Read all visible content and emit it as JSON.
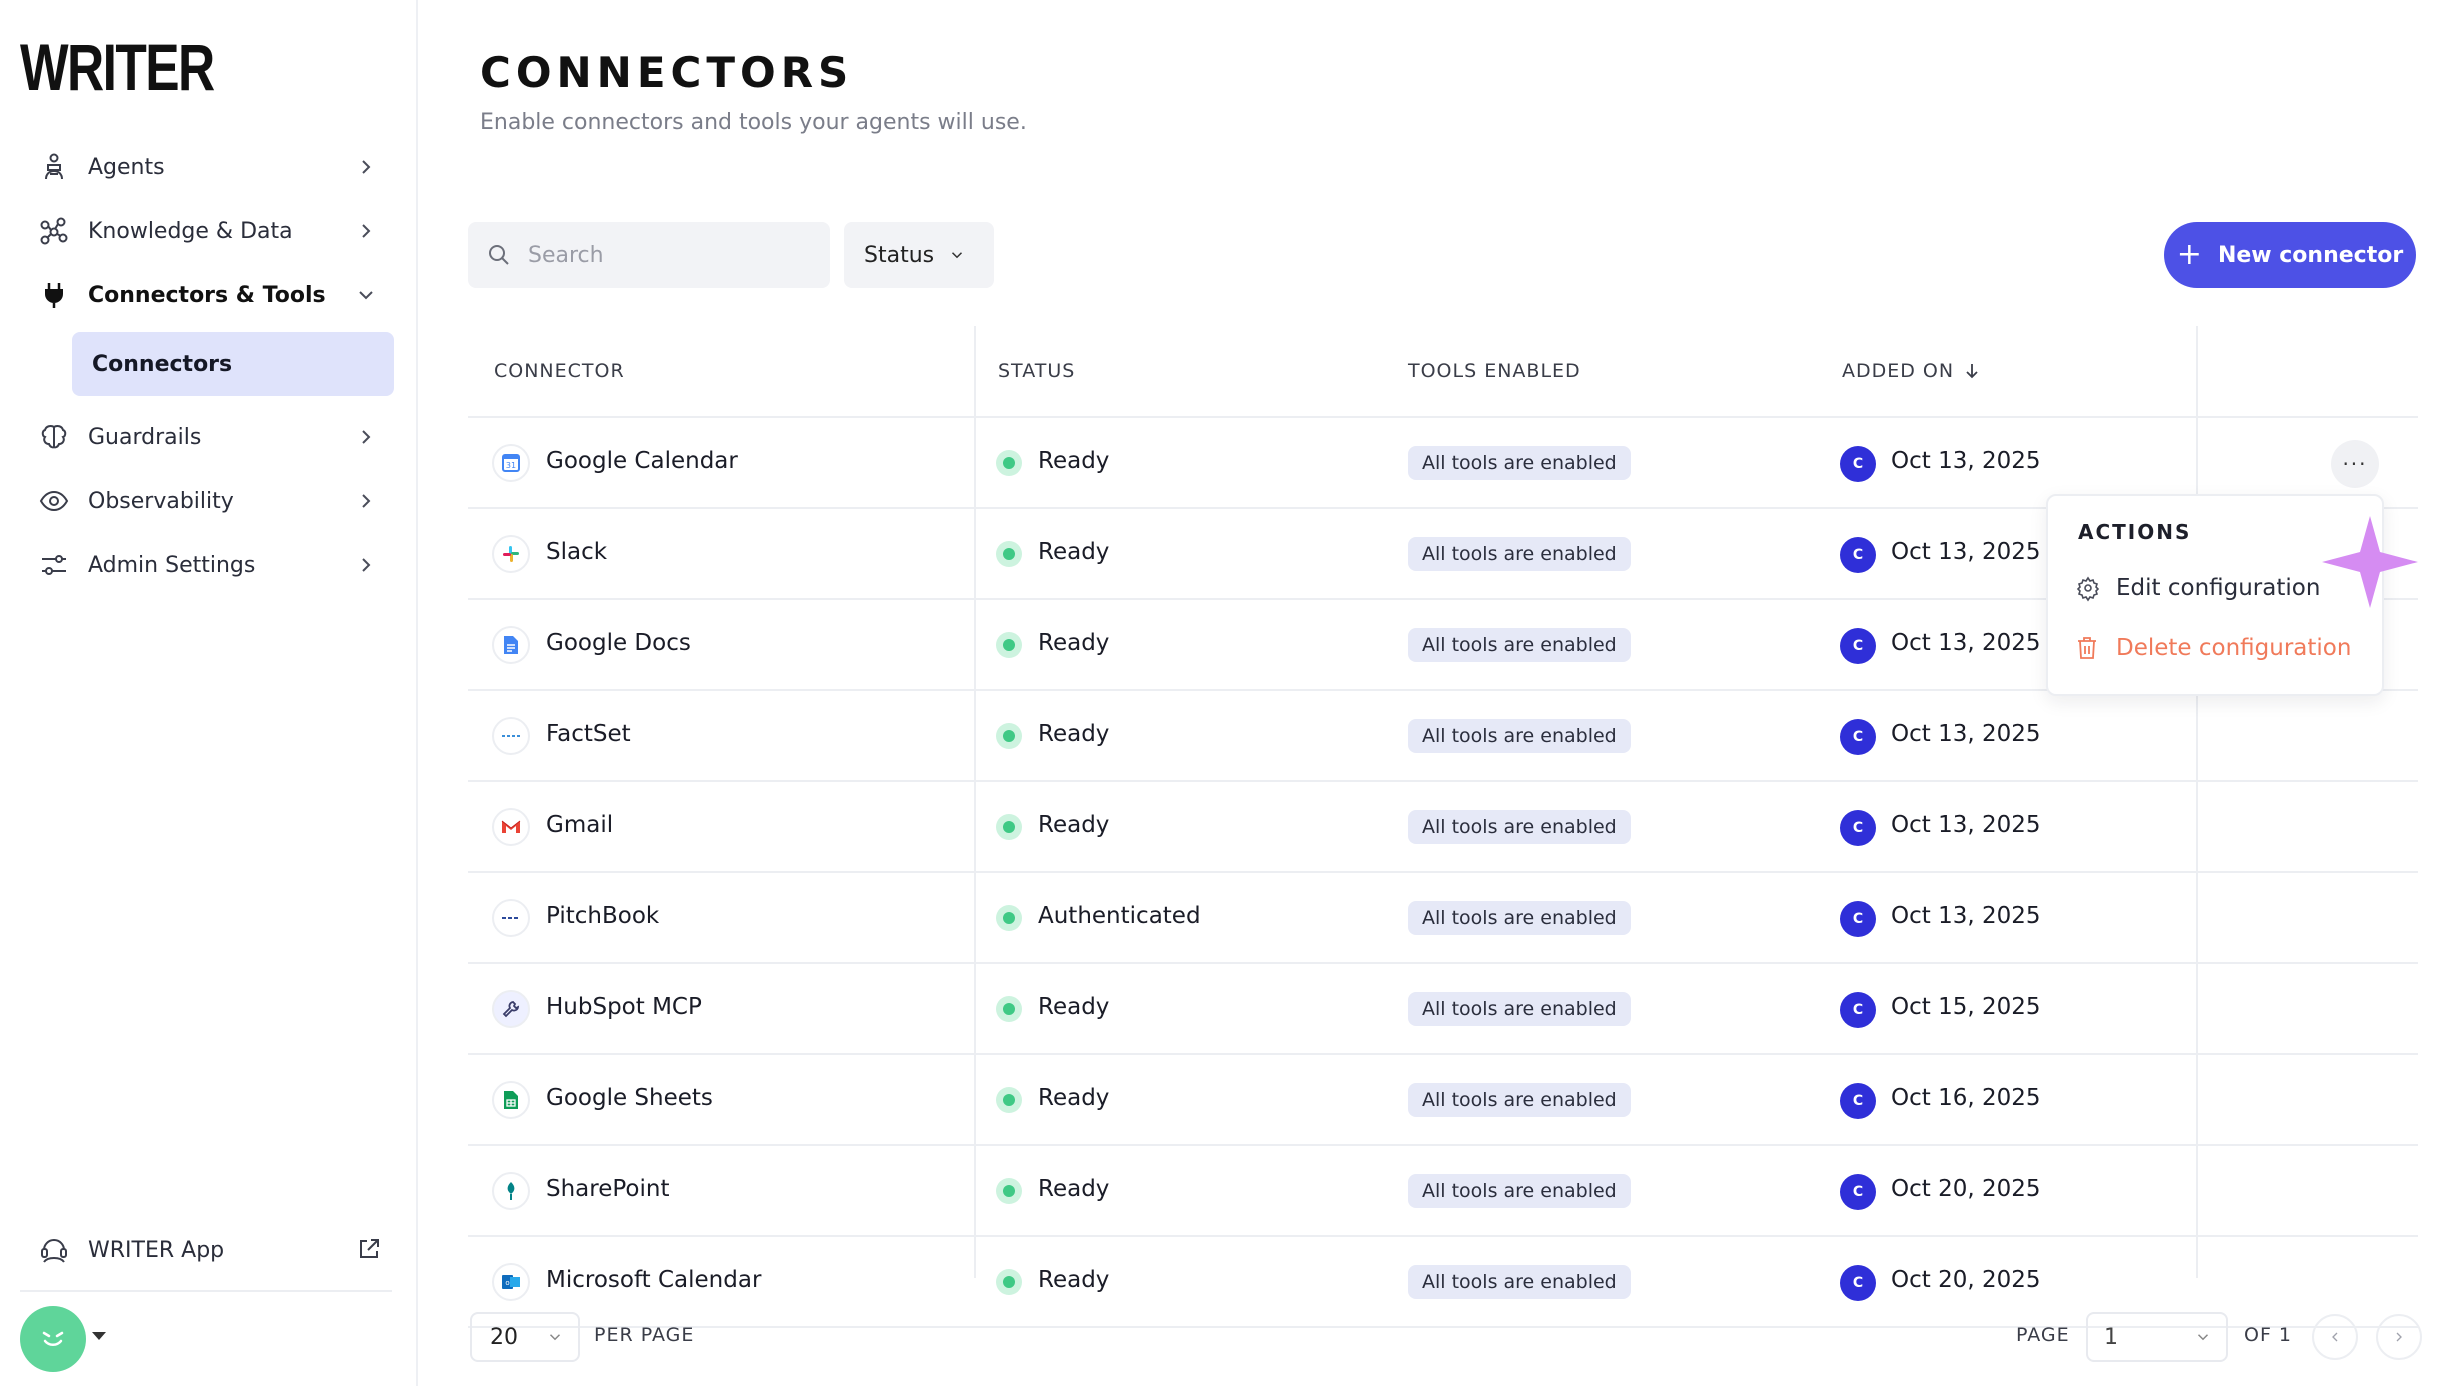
{
  "app": {
    "logo": "WRITER"
  },
  "sidebar": {
    "items": [
      {
        "label": "Agents",
        "icon": "agent-icon"
      },
      {
        "label": "Knowledge & Data",
        "icon": "knowledge-graph-icon"
      },
      {
        "label": "Connectors & Tools",
        "icon": "plug-icon",
        "expanded": true,
        "children": [
          {
            "label": "Connectors",
            "selected": true
          }
        ]
      },
      {
        "label": "Guardrails",
        "icon": "brain-icon"
      },
      {
        "label": "Observability",
        "icon": "eye-icon"
      },
      {
        "label": "Admin Settings",
        "icon": "sliders-icon"
      }
    ],
    "footer": {
      "label": "WRITER App",
      "icon": "support-agent-icon",
      "link_icon": "external-link-icon"
    },
    "avatar": {
      "color": "#5fd59a"
    }
  },
  "page": {
    "title": "CONNECTORS",
    "subtitle": "Enable connectors and tools your agents will use."
  },
  "toolbar": {
    "search_placeholder": "Search",
    "status_filter": "Status",
    "new_button": "New connector",
    "accent": "#4d51e6"
  },
  "table": {
    "columns": [
      "CONNECTOR",
      "STATUS",
      "TOOLS ENABLED",
      "ADDED ON"
    ],
    "sort_icon": "arrow-down-icon",
    "rows": [
      {
        "name": "Google Calendar",
        "icon": "google-calendar-icon",
        "status": "Ready",
        "tools": "All tools are enabled",
        "added_by": "C",
        "date": "Oct 13, 2025"
      },
      {
        "name": "Slack",
        "icon": "slack-icon",
        "status": "Ready",
        "tools": "All tools are enabled",
        "added_by": "C",
        "date": "Oct 13, 2025"
      },
      {
        "name": "Google Docs",
        "icon": "google-docs-icon",
        "status": "Ready",
        "tools": "All tools are enabled",
        "added_by": "C",
        "date": "Oct 13, 2025"
      },
      {
        "name": "FactSet",
        "icon": "factset-icon",
        "status": "Ready",
        "tools": "All tools are enabled",
        "added_by": "C",
        "date": "Oct 13, 2025"
      },
      {
        "name": "Gmail",
        "icon": "gmail-icon",
        "status": "Ready",
        "tools": "All tools are enabled",
        "added_by": "C",
        "date": "Oct 13, 2025"
      },
      {
        "name": "PitchBook",
        "icon": "pitchbook-icon",
        "status": "Authenticated",
        "tools": "All tools are enabled",
        "added_by": "C",
        "date": "Oct 13, 2025"
      },
      {
        "name": "HubSpot MCP",
        "icon": "wrench-icon",
        "status": "Ready",
        "tools": "All tools are enabled",
        "added_by": "C",
        "date": "Oct 15, 2025"
      },
      {
        "name": "Google Sheets",
        "icon": "google-sheets-icon",
        "status": "Ready",
        "tools": "All tools are enabled",
        "added_by": "C",
        "date": "Oct 16, 2025"
      },
      {
        "name": "SharePoint",
        "icon": "sharepoint-icon",
        "status": "Ready",
        "tools": "All tools are enabled",
        "added_by": "C",
        "date": "Oct 20, 2025"
      },
      {
        "name": "Microsoft Calendar",
        "icon": "outlook-calendar-icon",
        "status": "Ready",
        "tools": "All tools are enabled",
        "added_by": "C",
        "date": "Oct 20, 2025"
      }
    ]
  },
  "actions_menu": {
    "title": "ACTIONS",
    "edit": "Edit configuration",
    "delete": "Delete configuration",
    "delete_color": "#f07a5a"
  },
  "pagination": {
    "per_page_value": "20",
    "per_page_label": "PER PAGE",
    "page_label": "PAGE",
    "page_value": "1",
    "of_label": "OF 1"
  }
}
